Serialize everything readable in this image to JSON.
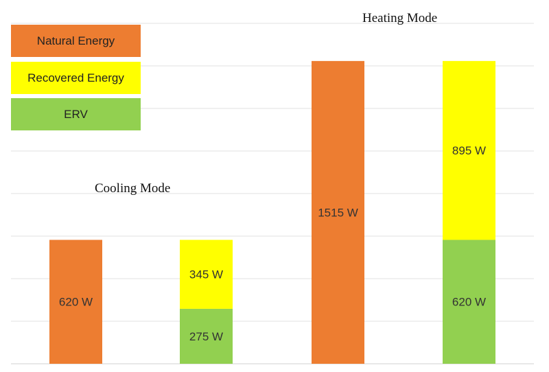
{
  "chart_data": {
    "type": "bar",
    "stacked": true,
    "groups": [
      {
        "title": "Cooling Mode",
        "bars": [
          {
            "segments": [
              {
                "series": "Natural Energy",
                "value": 620,
                "label": "620 W"
              }
            ]
          },
          {
            "segments": [
              {
                "series": "ERV",
                "value": 275,
                "label": "275 W"
              },
              {
                "series": "Recovered Energy",
                "value": 345,
                "label": "345 W"
              }
            ]
          }
        ]
      },
      {
        "title": "Heating Mode",
        "bars": [
          {
            "segments": [
              {
                "series": "Natural Energy",
                "value": 1515,
                "label": "1515 W"
              }
            ]
          },
          {
            "segments": [
              {
                "series": "ERV",
                "value": 620,
                "label": "620 W"
              },
              {
                "series": "Recovered Energy",
                "value": 895,
                "label": "895 W"
              }
            ]
          }
        ]
      }
    ],
    "legend": [
      {
        "name": "Natural Energy",
        "color": "#ED7D31"
      },
      {
        "name": "Recovered Energy",
        "color": "#FFFF00"
      },
      {
        "name": "ERV",
        "color": "#92D050"
      }
    ],
    "legend_position": "top-left",
    "grid": true,
    "ylim": [
      0,
      1700
    ]
  }
}
